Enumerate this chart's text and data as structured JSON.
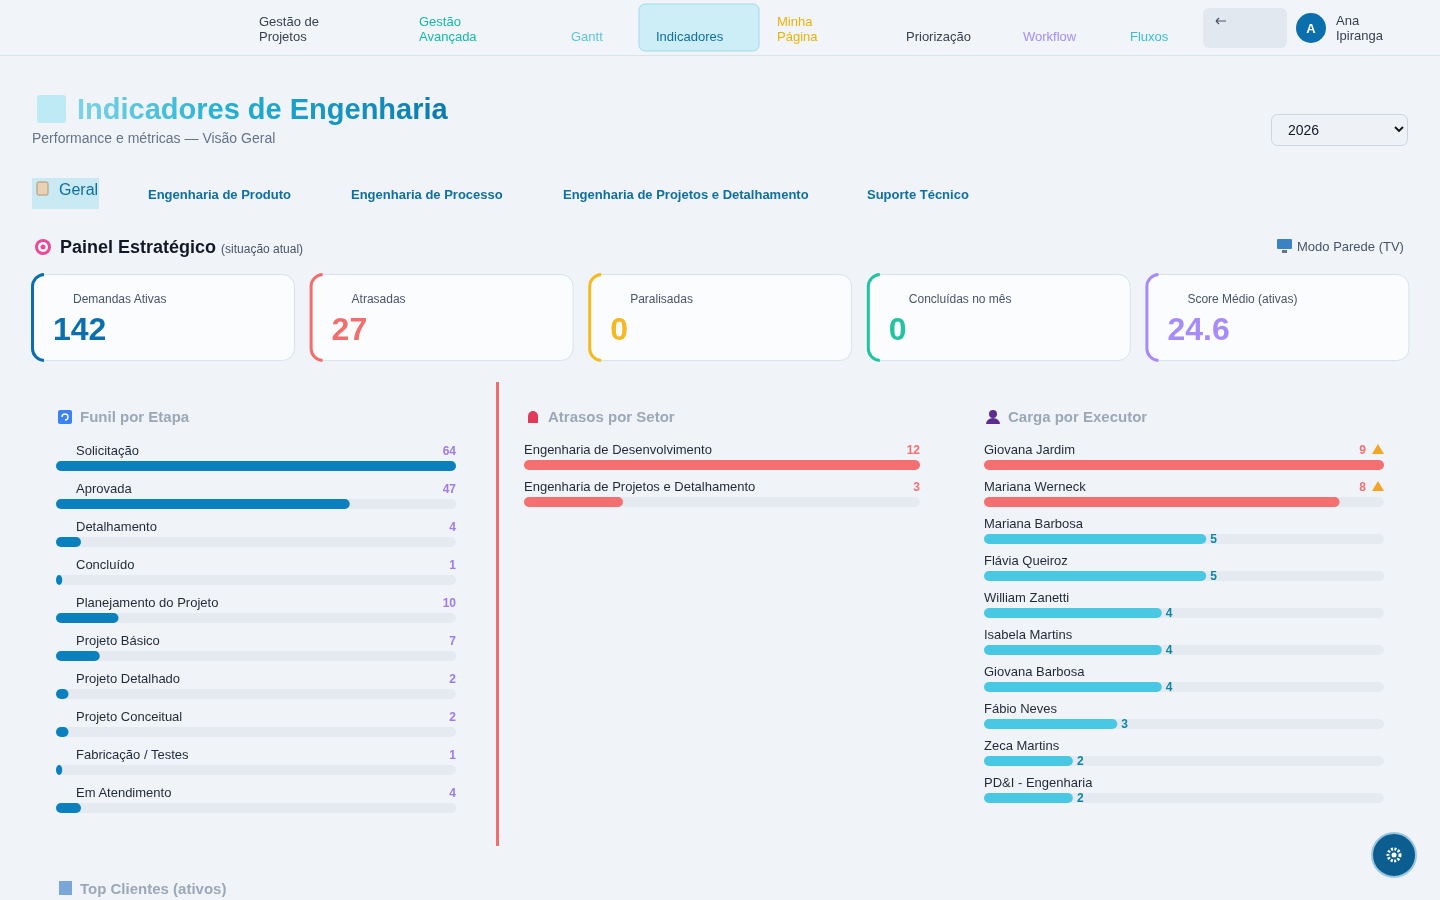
{
  "chart_data": [
    {
      "type": "other",
      "categories": [
        "Gestão de Projetos",
        "Gestão Avançada",
        "Gantt",
        "Indicadores",
        "Minha Página",
        "Priorização",
        "Workflow",
        "Fluxos"
      ],
      "annotations": [
        "A",
        "Ana Ipiranga"
      ]
    },
    {
      "type": "other",
      "title": "Indicadores de Engenharia",
      "subtitle": "Performance e métricas — Visão Geral",
      "categories": [
        "Geral",
        "Engenharia de Produto",
        "Engenharia de Processo",
        "Engenharia de Projetos e Detalhamento",
        "Suporte Técnico"
      ],
      "annotations": [
        "2026",
        "Modo Parede (TV)"
      ]
    },
    {
      "type": "other",
      "title": "Painel Estratégico",
      "subtitle": "(situação atual)",
      "categories": [
        "Demandas Ativas",
        "Atrasadas",
        "Paralisadas",
        "Concluídas no mês",
        "Score Médio (ativas)"
      ],
      "annotations": [
        "142",
        "27",
        "0",
        "0",
        "24.6"
      ]
    },
    {
      "type": "bar",
      "orientation": "horizontal",
      "title": "Funil por Etapa",
      "categories": [
        "Solicitação",
        "Aprovada",
        "Detalhamento",
        "Concluído",
        "Planejamento do Projeto",
        "Projeto Básico",
        "Projeto Detalhado",
        "Projeto Conceitual",
        "Fabricação / Testes",
        "Em Atendimento"
      ],
      "values": [
        64,
        47,
        4,
        1,
        10,
        7,
        2,
        2,
        1,
        4
      ],
      "color": "#0a80bf",
      "data_labels": true
    },
    {
      "type": "bar",
      "orientation": "horizontal",
      "title": "Atrasos por Setor",
      "categories": [
        "Engenharia de Desenvolvimento",
        "Engenharia de Projetos e Detalhamento"
      ],
      "values": [
        12,
        3
      ],
      "color": "#f47070",
      "data_labels": true
    },
    {
      "type": "bar",
      "orientation": "horizontal",
      "title": "Carga por Executor",
      "categories": [
        "Giovana Jardim",
        "Mariana Werneck",
        "Mariana Barbosa",
        "Flávia Queiroz",
        "William Zanetti",
        "Isabela Martins",
        "Giovana Barbosa",
        "Fábio Neves",
        "Zeca Martins",
        "PD&I - Engenharia"
      ],
      "values": [
        9,
        8,
        5,
        5,
        4,
        4,
        4,
        3,
        2,
        2
      ],
      "colors": [
        "#f47070",
        "#f47070",
        "#48c8e2",
        "#48c8e2",
        "#48c8e2",
        "#48c8e2",
        "#48c8e2",
        "#48c8e2",
        "#48c8e2",
        "#48c8e2"
      ],
      "value_labels": [
        "9",
        "8",
        "5",
        "5",
        "4",
        "4",
        "4",
        "3",
        "2",
        "2"
      ]
    },
    {
      "type": "other",
      "title": "Top Clientes (ativos)"
    }
  ]
}
